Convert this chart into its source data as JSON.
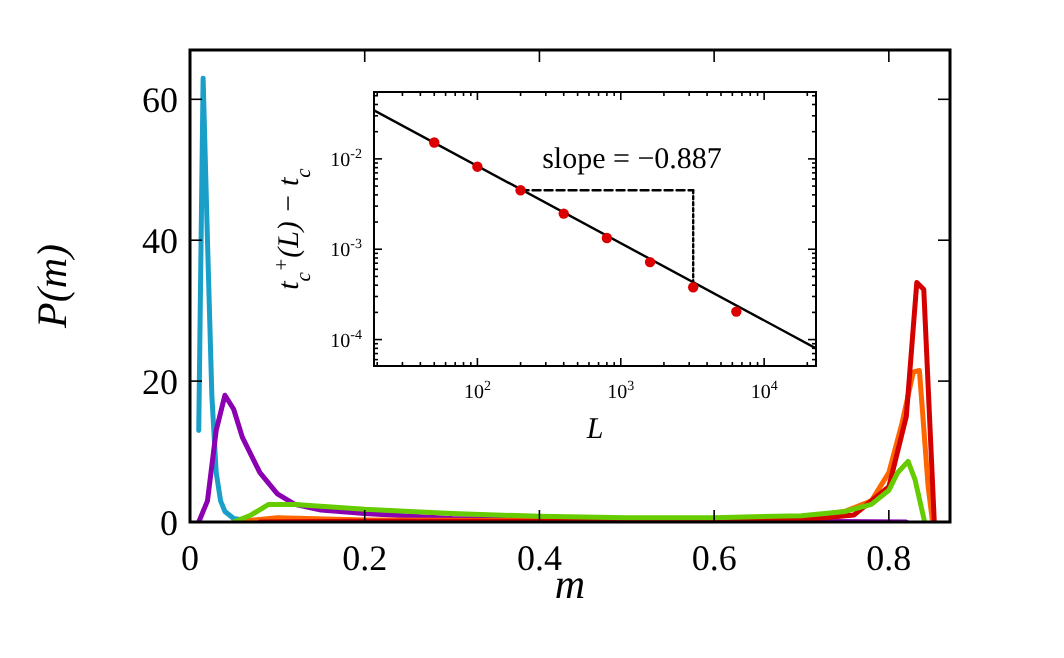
{
  "chart_data": [
    {
      "type": "line",
      "xlabel": "m",
      "ylabel": "P(m)",
      "xlim": [
        0,
        0.87
      ],
      "ylim": [
        0,
        67
      ],
      "xticks": [
        0,
        0.2,
        0.4,
        0.6,
        0.8
      ],
      "yticks": [
        0,
        20,
        40,
        60
      ],
      "grid": false,
      "series": [
        {
          "color": "#1a9fc9",
          "x": [
            0.01,
            0.015,
            0.02,
            0.025,
            0.03,
            0.035,
            0.04,
            0.05,
            0.07,
            0.1,
            0.2
          ],
          "values": [
            13,
            63,
            40,
            18,
            7,
            3,
            1.5,
            0.5,
            0.1,
            0,
            0
          ]
        },
        {
          "color": "#8b00b0",
          "x": [
            0.01,
            0.02,
            0.03,
            0.04,
            0.05,
            0.06,
            0.08,
            0.1,
            0.12,
            0.15,
            0.2,
            0.3,
            0.5,
            0.7,
            0.82
          ],
          "values": [
            0,
            3,
            13,
            18,
            16,
            12,
            7,
            4,
            2.5,
            1.7,
            1.2,
            0.5,
            0.2,
            0.1,
            0
          ]
        },
        {
          "color": "#ff6600",
          "x": [
            0.05,
            0.1,
            0.2,
            0.4,
            0.6,
            0.7,
            0.75,
            0.78,
            0.8,
            0.815,
            0.828,
            0.835,
            0.845,
            0.85
          ],
          "values": [
            0,
            0.6,
            0.3,
            0.2,
            0.3,
            0.6,
            1.5,
            3,
            7,
            14,
            21.3,
            21.5,
            5,
            0
          ]
        },
        {
          "color": "#d40000",
          "x": [
            0.08,
            0.2,
            0.5,
            0.7,
            0.76,
            0.8,
            0.82,
            0.832,
            0.84,
            0.852
          ],
          "values": [
            0,
            0.1,
            0.1,
            0.3,
            1,
            5,
            15,
            34,
            33,
            0
          ]
        },
        {
          "color": "#66cc00",
          "x": [
            0.05,
            0.07,
            0.09,
            0.12,
            0.2,
            0.3,
            0.4,
            0.5,
            0.6,
            0.7,
            0.75,
            0.78,
            0.8,
            0.81,
            0.822,
            0.83,
            0.841
          ],
          "values": [
            0,
            1,
            2.5,
            2.5,
            1.8,
            1.2,
            0.8,
            0.6,
            0.6,
            0.9,
            1.5,
            2.5,
            4.5,
            7,
            8.6,
            6,
            0
          ]
        }
      ]
    },
    {
      "type": "scatter",
      "xlabel": "L",
      "ylabel": "t$_{c}$$^{+}$(L) − t$_{c}$",
      "log": "xy",
      "grid": false,
      "xlim": [
        19,
        23000
      ],
      "ylim": [
        5.1e-05,
        0.055
      ],
      "xticks": [
        {
          "value": 20,
          "label": null
        },
        {
          "value": 30,
          "label": null
        },
        {
          "value": 40,
          "label": null
        },
        {
          "value": 50,
          "label": null
        },
        {
          "value": 60,
          "label": null
        },
        {
          "value": 70,
          "label": null
        },
        {
          "value": 80,
          "label": null
        },
        {
          "value": 90,
          "label": null
        },
        {
          "value": 100,
          "label": "10$^{2}$"
        },
        {
          "value": 200,
          "label": null
        },
        {
          "value": 300,
          "label": null
        },
        {
          "value": 400,
          "label": null
        },
        {
          "value": 500,
          "label": null
        },
        {
          "value": 600,
          "label": null
        },
        {
          "value": 700,
          "label": null
        },
        {
          "value": 800,
          "label": null
        },
        {
          "value": 900,
          "label": null
        },
        {
          "value": 1000,
          "label": "10$^{3}$"
        },
        {
          "value": 2000,
          "label": null
        },
        {
          "value": 3000,
          "label": null
        },
        {
          "value": 4000,
          "label": null
        },
        {
          "value": 5000,
          "label": null
        },
        {
          "value": 6000,
          "label": null
        },
        {
          "value": 7000,
          "label": null
        },
        {
          "value": 8000,
          "label": null
        },
        {
          "value": 9000,
          "label": null
        },
        {
          "value": 10000,
          "label": "10$^{4}$"
        },
        {
          "value": 20000,
          "label": null
        }
      ],
      "yticks": [
        {
          "value": 6e-05,
          "label": null
        },
        {
          "value": 7e-05,
          "label": null
        },
        {
          "value": 8e-05,
          "label": null
        },
        {
          "value": 9e-05,
          "label": null
        },
        {
          "value": 0.0001,
          "label": "10$^{-4}$"
        },
        {
          "value": 0.0002,
          "label": null
        },
        {
          "value": 0.0003,
          "label": null
        },
        {
          "value": 0.0004,
          "label": null
        },
        {
          "value": 0.0005,
          "label": null
        },
        {
          "value": 0.0006,
          "label": null
        },
        {
          "value": 0.0007,
          "label": null
        },
        {
          "value": 0.0008,
          "label": null
        },
        {
          "value": 0.0009,
          "label": null
        },
        {
          "value": 0.001,
          "label": "10$^{-3}$"
        },
        {
          "value": 0.002,
          "label": null
        },
        {
          "value": 0.003,
          "label": null
        },
        {
          "value": 0.004,
          "label": null
        },
        {
          "value": 0.005,
          "label": null
        },
        {
          "value": 0.006,
          "label": null
        },
        {
          "value": 0.007,
          "label": null
        },
        {
          "value": 0.008,
          "label": null
        },
        {
          "value": 0.009,
          "label": null
        },
        {
          "value": 0.01,
          "label": "10$^{-2}$"
        },
        {
          "value": 0.02,
          "label": null
        },
        {
          "value": 0.03,
          "label": null
        },
        {
          "value": 0.04,
          "label": null
        },
        {
          "value": 0.05,
          "label": null
        }
      ],
      "annotations": [
        "slope = −0.887"
      ],
      "series": [
        {
          "type": "line",
          "color": "#000000",
          "x": [
            19,
            23000
          ],
          "values": [
            0.0345,
            8e-05
          ],
          "marker": "none",
          "line_style": "solid"
        },
        {
          "type": "line",
          "color": "#000000",
          "x": [
            200,
            3200
          ],
          "values": [
            0.0045,
            0.0045
          ],
          "marker": "none",
          "line_style": "dashed"
        },
        {
          "type": "line",
          "color": "#000000",
          "x": [
            3200,
            3200
          ],
          "values": [
            0.0045,
            0.00038
          ],
          "marker": "none",
          "line_style": "dotted"
        },
        {
          "color": "#dd0000",
          "marker": "circle",
          "x": [
            50,
            100,
            200,
            400,
            800,
            1600,
            3200,
            6400
          ],
          "values": [
            0.0152,
            0.0082,
            0.0045,
            0.00248,
            0.00133,
            0.00072,
            0.00038,
            0.000204
          ]
        }
      ]
    }
  ]
}
